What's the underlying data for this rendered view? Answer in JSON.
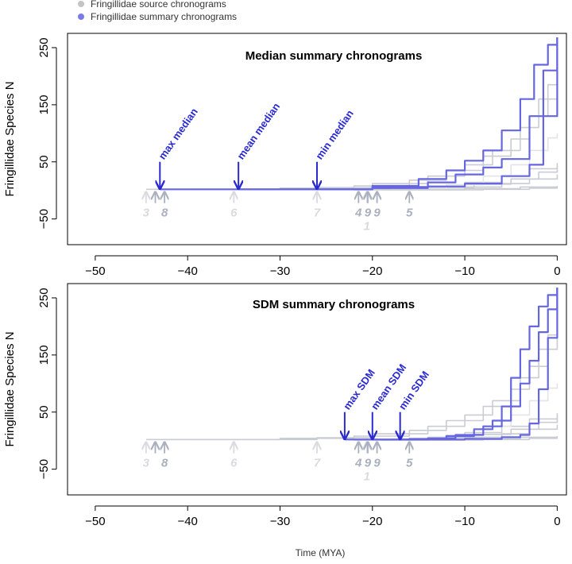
{
  "legend": {
    "position": "top-left",
    "items": [
      {
        "label": "Fringillidae source chronograms",
        "color": "#c4c4c8"
      },
      {
        "label": "Fringillidae summary chronograms",
        "color": "#7b7be8"
      }
    ]
  },
  "xlabel": "Time (MYA)",
  "colors": {
    "summary": "#6666e0",
    "source": "#c9ccd3",
    "source_light": "#e2e4e8",
    "annotation": "#2a2ad0",
    "source_arrow": "#aab0bd",
    "source_arrow_light": "#d9dbe0"
  },
  "chart_data": [
    {
      "type": "line",
      "title": "Median summary chronograms",
      "ylabel": "Fringillidae Species N",
      "xlim": [
        -53,
        1
      ],
      "ylim": [
        -95,
        275
      ],
      "xticks": [
        -50,
        -40,
        -30,
        -20,
        -10,
        0
      ],
      "yticks": [
        250,
        150,
        50,
        -50
      ],
      "grid": false,
      "series": [
        {
          "group": "summary",
          "points": [
            [
              -43,
              2
            ],
            [
              -26,
              2
            ],
            [
              -20,
              4
            ],
            [
              -14,
              7
            ],
            [
              -10,
              12
            ],
            [
              -6,
              25
            ],
            [
              -3,
              45
            ],
            [
              -1.5,
              130
            ],
            [
              0,
              268
            ]
          ]
        },
        {
          "group": "summary",
          "points": [
            [
              -34.5,
              2
            ],
            [
              -26,
              2
            ],
            [
              -20,
              6
            ],
            [
              -14,
              14
            ],
            [
              -11,
              28
            ],
            [
              -8,
              40
            ],
            [
              -6,
              55
            ],
            [
              -3,
              130
            ],
            [
              -1.5,
              210
            ],
            [
              0,
              268
            ]
          ]
        },
        {
          "group": "summary",
          "points": [
            [
              -26,
              2
            ],
            [
              -20,
              8
            ],
            [
              -15,
              20
            ],
            [
              -12,
              35
            ],
            [
              -10,
              52
            ],
            [
              -8,
              70
            ],
            [
              -6,
              105
            ],
            [
              -4,
              160
            ],
            [
              -2.5,
              220
            ],
            [
              -1,
              255
            ],
            [
              0,
              268
            ]
          ]
        },
        {
          "group": "source",
          "points": [
            [
              -44.5,
              2
            ],
            [
              -30,
              4
            ],
            [
              -22,
              8
            ],
            [
              -16,
              18
            ],
            [
              -12,
              35
            ],
            [
              -8,
              60
            ],
            [
              -5,
              90
            ],
            [
              -3,
              130
            ],
            [
              -1,
              185
            ],
            [
              0,
              215
            ]
          ]
        },
        {
          "group": "source",
          "points": [
            [
              -40,
              2
            ],
            [
              -26,
              5
            ],
            [
              -20,
              12
            ],
            [
              -14,
              25
            ],
            [
              -10,
              45
            ],
            [
              -7,
              70
            ],
            [
              -4,
              110
            ],
            [
              -2,
              160
            ],
            [
              0,
              190
            ]
          ]
        },
        {
          "group": "source",
          "points": [
            [
              -20,
              2
            ],
            [
              -14,
              6
            ],
            [
              -10,
              14
            ],
            [
              -6,
              25
            ],
            [
              -3,
              38
            ],
            [
              0,
              48
            ]
          ]
        },
        {
          "group": "source",
          "points": [
            [
              -21,
              2
            ],
            [
              -14,
              5
            ],
            [
              -9,
              11
            ],
            [
              -5,
              20
            ],
            [
              -2,
              32
            ],
            [
              0,
              42
            ]
          ]
        },
        {
          "group": "source",
          "points": [
            [
              -16,
              2
            ],
            [
              -10,
              6
            ],
            [
              -6,
              12
            ],
            [
              -3,
              20
            ],
            [
              0,
              28
            ]
          ]
        },
        {
          "group": "source_light",
          "points": [
            [
              -18,
              3
            ],
            [
              -12,
              10
            ],
            [
              -8,
              25
            ],
            [
              -5,
              45
            ],
            [
              -3,
              70
            ],
            [
              -1,
              92
            ],
            [
              0,
              100
            ]
          ]
        },
        {
          "group": "source",
          "points": [
            [
              -22,
              1
            ],
            [
              -10,
              3
            ],
            [
              -4,
              6
            ],
            [
              0,
              8
            ]
          ]
        },
        {
          "group": "source",
          "points": [
            [
              -19,
              1
            ],
            [
              -8,
              2
            ],
            [
              -3,
              4
            ],
            [
              0,
              5
            ]
          ]
        }
      ],
      "annotations": [
        {
          "text": "max  median",
          "x": -43
        },
        {
          "text": "mean  median",
          "x": -34.5
        },
        {
          "text": "min  median",
          "x": -26
        }
      ],
      "source_markers": [
        {
          "label": "3",
          "x": -44.5,
          "tone": "light"
        },
        {
          "label": "",
          "x": -43.5,
          "tone": "dark"
        },
        {
          "label": "8",
          "x": -42.5,
          "tone": "dark"
        },
        {
          "label": "6",
          "x": -35,
          "tone": "light"
        },
        {
          "label": "7",
          "x": -26,
          "tone": "light"
        },
        {
          "label": "4",
          "x": -21.5,
          "tone": "dark"
        },
        {
          "label": "1",
          "x": -20.6,
          "tone": "light"
        },
        {
          "label": "9",
          "x": -20.5,
          "tone": "dark"
        },
        {
          "label": "9",
          "x": -19.5,
          "tone": "dark"
        },
        {
          "label": "5",
          "x": -16,
          "tone": "dark"
        }
      ]
    },
    {
      "type": "line",
      "title": "SDM summary chronograms",
      "ylabel": "Fringillidae Species N",
      "xlim": [
        -53,
        1
      ],
      "ylim": [
        -95,
        275
      ],
      "xticks": [
        -50,
        -40,
        -30,
        -20,
        -10,
        0
      ],
      "yticks": [
        250,
        150,
        50,
        -50
      ],
      "grid": false,
      "series": [
        {
          "group": "summary",
          "points": [
            [
              -23,
              2
            ],
            [
              -16,
              2
            ],
            [
              -10,
              3
            ],
            [
              -6,
              6
            ],
            [
              -4,
              10
            ],
            [
              -3,
              30
            ],
            [
              -2,
              90
            ],
            [
              -1,
              180
            ],
            [
              0,
              268
            ]
          ]
        },
        {
          "group": "summary",
          "points": [
            [
              -20,
              2
            ],
            [
              -16,
              3
            ],
            [
              -12,
              8
            ],
            [
              -9,
              20
            ],
            [
              -7,
              35
            ],
            [
              -5,
              60
            ],
            [
              -4,
              100
            ],
            [
              -3,
              140
            ],
            [
              -2,
              190
            ],
            [
              -1,
              230
            ],
            [
              0,
              268
            ]
          ]
        },
        {
          "group": "summary",
          "points": [
            [
              -17,
              2
            ],
            [
              -14,
              4
            ],
            [
              -11,
              10
            ],
            [
              -8,
              25
            ],
            [
              -6,
              60
            ],
            [
              -5,
              110
            ],
            [
              -4,
              160
            ],
            [
              -3,
              200
            ],
            [
              -2,
              235
            ],
            [
              -1,
              255
            ],
            [
              0,
              268
            ]
          ]
        },
        {
          "group": "source",
          "points": [
            [
              -44.5,
              2
            ],
            [
              -30,
              4
            ],
            [
              -22,
              8
            ],
            [
              -16,
              18
            ],
            [
              -12,
              35
            ],
            [
              -8,
              60
            ],
            [
              -5,
              90
            ],
            [
              -3,
              130
            ],
            [
              -1,
              185
            ],
            [
              0,
              215
            ]
          ]
        },
        {
          "group": "source",
          "points": [
            [
              -40,
              2
            ],
            [
              -26,
              5
            ],
            [
              -20,
              12
            ],
            [
              -14,
              25
            ],
            [
              -10,
              45
            ],
            [
              -7,
              70
            ],
            [
              -4,
              110
            ],
            [
              -2,
              160
            ],
            [
              0,
              190
            ]
          ]
        },
        {
          "group": "source",
          "points": [
            [
              -20,
              2
            ],
            [
              -14,
              6
            ],
            [
              -10,
              14
            ],
            [
              -6,
              25
            ],
            [
              -3,
              38
            ],
            [
              0,
              48
            ]
          ]
        },
        {
          "group": "source",
          "points": [
            [
              -21,
              2
            ],
            [
              -14,
              5
            ],
            [
              -9,
              11
            ],
            [
              -5,
              20
            ],
            [
              -2,
              32
            ],
            [
              0,
              42
            ]
          ]
        },
        {
          "group": "source",
          "points": [
            [
              -16,
              2
            ],
            [
              -10,
              6
            ],
            [
              -6,
              12
            ],
            [
              -3,
              20
            ],
            [
              0,
              28
            ]
          ]
        },
        {
          "group": "source_light",
          "points": [
            [
              -18,
              3
            ],
            [
              -12,
              10
            ],
            [
              -8,
              25
            ],
            [
              -5,
              45
            ],
            [
              -3,
              70
            ],
            [
              -1,
              92
            ],
            [
              0,
              100
            ]
          ]
        },
        {
          "group": "source",
          "points": [
            [
              -22,
              1
            ],
            [
              -10,
              3
            ],
            [
              -4,
              6
            ],
            [
              0,
              8
            ]
          ]
        },
        {
          "group": "source",
          "points": [
            [
              -19,
              1
            ],
            [
              -8,
              2
            ],
            [
              -3,
              4
            ],
            [
              0,
              5
            ]
          ]
        }
      ],
      "annotations": [
        {
          "text": "max  SDM",
          "x": -23
        },
        {
          "text": "mean  SDM",
          "x": -20
        },
        {
          "text": "min  SDM",
          "x": -17
        }
      ],
      "source_markers": [
        {
          "label": "3",
          "x": -44.5,
          "tone": "light"
        },
        {
          "label": "",
          "x": -43.5,
          "tone": "dark"
        },
        {
          "label": "8",
          "x": -42.5,
          "tone": "dark"
        },
        {
          "label": "6",
          "x": -35,
          "tone": "light"
        },
        {
          "label": "7",
          "x": -26,
          "tone": "light"
        },
        {
          "label": "4",
          "x": -21.5,
          "tone": "dark"
        },
        {
          "label": "1",
          "x": -20.6,
          "tone": "light"
        },
        {
          "label": "9",
          "x": -20.5,
          "tone": "dark"
        },
        {
          "label": "9",
          "x": -19.5,
          "tone": "dark"
        },
        {
          "label": "5",
          "x": -16,
          "tone": "dark"
        }
      ]
    }
  ]
}
